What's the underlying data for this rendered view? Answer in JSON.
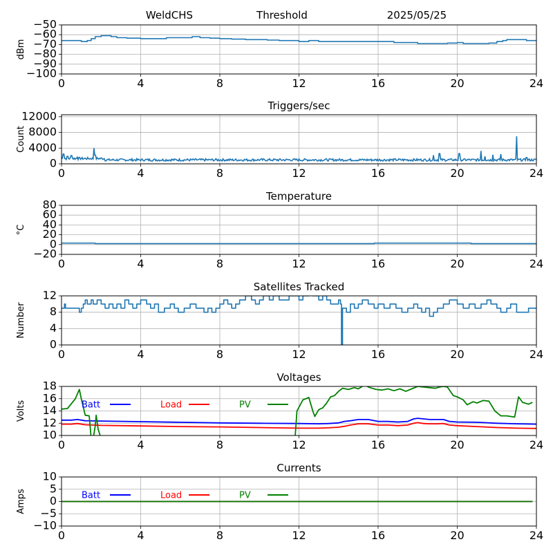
{
  "header": {
    "station": "WeldCHS",
    "mode": "Threshold",
    "date": "2025/05/25"
  },
  "chart_data": [
    {
      "id": "rssi",
      "type": "line",
      "title": "",
      "ylabel": "dBm",
      "xlim": [
        0,
        24
      ],
      "ylim": [
        -100,
        -50
      ],
      "xticks": [
        0,
        4,
        8,
        12,
        16,
        20,
        24
      ],
      "yticks": [
        -100,
        -90,
        -80,
        -70,
        -60,
        -50
      ],
      "step": true,
      "series": [
        {
          "color": "#1f77b4",
          "x": [
            0,
            1.0,
            1.3,
            1.5,
            1.7,
            2.0,
            2.2,
            2.5,
            2.8,
            3.3,
            4.0,
            4.8,
            5.3,
            6.0,
            6.6,
            7.0,
            7.5,
            8.0,
            8.6,
            9.3,
            10.0,
            10.4,
            11.0,
            11.4,
            12.0,
            12.5,
            13.0,
            14.0,
            15.0,
            16.0,
            16.8,
            17.5,
            18.0,
            18.5,
            19.5,
            20.0,
            20.3,
            21.2,
            21.6,
            22.0,
            22.3,
            22.5,
            23.0,
            23.5,
            24.0
          ],
          "y": [
            -66,
            -67,
            -66,
            -64,
            -62,
            -61,
            -61,
            -62,
            -63,
            -63.5,
            -64,
            -64,
            -63,
            -63,
            -62,
            -63,
            -63.5,
            -64,
            -64.5,
            -65,
            -65,
            -65.5,
            -66,
            -66,
            -67,
            -66,
            -67,
            -67,
            -67,
            -67,
            -68,
            -68,
            -69,
            -69,
            -68.5,
            -68,
            -69,
            -69,
            -68.5,
            -67,
            -66,
            -65,
            -65,
            -66,
            -66
          ]
        }
      ]
    },
    {
      "id": "triggers",
      "type": "line",
      "title": "Triggers/sec",
      "ylabel": "Count",
      "xlim": [
        0,
        24
      ],
      "ylim": [
        0,
        12500
      ],
      "xticks": [
        0,
        4,
        8,
        12,
        16,
        20,
        24
      ],
      "yticks": [
        0,
        4000,
        8000,
        12000
      ],
      "baseline": 1000,
      "noise": 300,
      "spikes": [
        [
          0.1,
          2500
        ],
        [
          0.3,
          1900
        ],
        [
          0.5,
          2100
        ],
        [
          0.8,
          1700
        ],
        [
          1.65,
          4000
        ],
        [
          1.7,
          2200
        ],
        [
          18.8,
          2200
        ],
        [
          19.1,
          2600
        ],
        [
          20.1,
          2600
        ],
        [
          21.2,
          3300
        ],
        [
          21.4,
          1900
        ],
        [
          21.8,
          2300
        ],
        [
          22.2,
          2500
        ],
        [
          23.0,
          7000
        ],
        [
          23.5,
          1600
        ]
      ],
      "series": [
        {
          "color": "#1f77b4"
        }
      ]
    },
    {
      "id": "temperature",
      "type": "line",
      "title": "Temperature",
      "ylabel": "°C",
      "xlim": [
        0,
        24
      ],
      "ylim": [
        -20,
        80
      ],
      "xticks": [
        0,
        4,
        8,
        12,
        16,
        20,
        24
      ],
      "yticks": [
        -20,
        0,
        20,
        40,
        60,
        80
      ],
      "step": true,
      "series": [
        {
          "color": "#1f77b4",
          "x": [
            0,
            1.6,
            1.7,
            15.7,
            15.8,
            20.6,
            20.7,
            24
          ],
          "y": [
            3,
            3,
            2,
            2,
            3,
            3,
            2,
            2
          ]
        }
      ]
    },
    {
      "id": "satellites",
      "type": "line",
      "title": "Satellites Tracked",
      "ylabel": "Number",
      "xlim": [
        0,
        24
      ],
      "ylim": [
        0,
        12
      ],
      "xticks": [
        0,
        4,
        8,
        12,
        16,
        20,
        24
      ],
      "yticks": [
        0,
        4,
        8,
        12
      ],
      "step": true,
      "series": [
        {
          "color": "#1f77b4",
          "x": [
            0,
            0.15,
            0.2,
            0.9,
            1.0,
            1.1,
            1.2,
            1.3,
            1.5,
            1.6,
            1.8,
            2.0,
            2.2,
            2.4,
            2.6,
            2.8,
            3.0,
            3.2,
            3.4,
            3.6,
            3.8,
            4.0,
            4.3,
            4.5,
            4.7,
            4.9,
            5.2,
            5.5,
            5.7,
            5.9,
            6.2,
            6.5,
            6.8,
            7.2,
            7.4,
            7.6,
            7.8,
            8.0,
            8.2,
            8.4,
            8.6,
            8.8,
            9.0,
            9.3,
            9.6,
            9.8,
            10.0,
            10.2,
            10.5,
            10.7,
            11.0,
            11.5,
            12.0,
            12.2,
            12.5,
            12.7,
            13.0,
            13.2,
            13.4,
            13.6,
            14.0,
            14.1,
            14.15,
            14.2,
            14.4,
            14.6,
            14.8,
            15.0,
            15.2,
            15.5,
            15.8,
            16.0,
            16.3,
            16.6,
            16.9,
            17.2,
            17.5,
            17.8,
            18.0,
            18.2,
            18.4,
            18.6,
            18.8,
            19.0,
            19.3,
            19.6,
            20.0,
            20.3,
            20.6,
            20.9,
            21.2,
            21.5,
            21.7,
            22.0,
            22.2,
            22.5,
            22.7,
            23.0,
            23.3,
            23.6,
            24.0
          ],
          "y": [
            9,
            10,
            9,
            8,
            9,
            10,
            11,
            10,
            11,
            10,
            11,
            10,
            9,
            10,
            9,
            10,
            9,
            11,
            10,
            9,
            10,
            11,
            10,
            9,
            10,
            8,
            9,
            10,
            9,
            8,
            9,
            10,
            9,
            8,
            9,
            8,
            9,
            10,
            11,
            10,
            9,
            10,
            11,
            12,
            11,
            10,
            11,
            12,
            11,
            12,
            11,
            12,
            11,
            12,
            13,
            12,
            11,
            12,
            11,
            10,
            11,
            10,
            0,
            9,
            8,
            10,
            9,
            10,
            11,
            10,
            9,
            10,
            9,
            10,
            9,
            8,
            9,
            10,
            9,
            8,
            9,
            7,
            8,
            9,
            10,
            11,
            10,
            9,
            10,
            9,
            10,
            11,
            10,
            9,
            8,
            9,
            10,
            8,
            8,
            9,
            9
          ]
        }
      ]
    },
    {
      "id": "voltages",
      "type": "line",
      "title": "Voltages",
      "ylabel": "Volts",
      "xlim": [
        0,
        24
      ],
      "ylim": [
        10,
        18
      ],
      "xticks": [
        0,
        4,
        8,
        12,
        16,
        20,
        24
      ],
      "yticks": [
        10,
        12,
        14,
        16,
        18
      ],
      "legend": [
        {
          "name": "Batt",
          "color": "#0000ff"
        },
        {
          "name": "Load",
          "color": "#ff0000"
        },
        {
          "name": "PV",
          "color": "#008000"
        }
      ],
      "series": [
        {
          "name": "Batt",
          "color": "#0000ff",
          "x": [
            0,
            0.5,
            0.8,
            1.2,
            2,
            4,
            6,
            8,
            10,
            12,
            13,
            13.5,
            14,
            14.3,
            14.6,
            15,
            15.5,
            16,
            16.5,
            17,
            17.5,
            17.8,
            18,
            18.3,
            18.6,
            19,
            19.3,
            19.6,
            20,
            21,
            22,
            23,
            24
          ],
          "y": [
            12.5,
            12.5,
            12.6,
            12.4,
            12.35,
            12.25,
            12.15,
            12.05,
            12.0,
            11.95,
            11.9,
            11.95,
            12.05,
            12.3,
            12.4,
            12.6,
            12.6,
            12.3,
            12.3,
            12.2,
            12.3,
            12.7,
            12.8,
            12.7,
            12.6,
            12.6,
            12.6,
            12.3,
            12.2,
            12.15,
            12.0,
            11.9,
            11.85
          ]
        },
        {
          "name": "Load",
          "color": "#ff0000",
          "x": [
            0,
            0.5,
            0.8,
            1.2,
            2,
            4,
            6,
            8,
            10,
            12,
            13,
            13.5,
            14,
            14.3,
            14.6,
            15,
            15.5,
            16,
            16.5,
            17,
            17.5,
            17.8,
            18,
            18.3,
            18.6,
            19,
            19.3,
            19.6,
            20,
            21,
            22,
            23,
            24
          ],
          "y": [
            11.85,
            11.85,
            11.95,
            11.75,
            11.65,
            11.55,
            11.45,
            11.4,
            11.3,
            11.2,
            11.2,
            11.25,
            11.35,
            11.5,
            11.7,
            11.9,
            11.9,
            11.7,
            11.7,
            11.6,
            11.7,
            12.0,
            12.1,
            11.95,
            11.9,
            11.9,
            11.95,
            11.7,
            11.6,
            11.45,
            11.3,
            11.2,
            11.15
          ]
        },
        {
          "name": "PV",
          "color": "#008000",
          "x": [
            0,
            0.3,
            0.5,
            0.7,
            0.9,
            1.0,
            1.2,
            1.4,
            1.5,
            1.6,
            1.7,
            1.75,
            1.85,
            2.0,
            11.8,
            11.9,
            12.2,
            12.5,
            12.7,
            12.8,
            13.0,
            13.2,
            13.4,
            13.6,
            13.8,
            14.0,
            14.2,
            14.5,
            14.8,
            15.0,
            15.3,
            15.6,
            15.9,
            16.2,
            16.5,
            16.8,
            17.1,
            17.4,
            17.7,
            18.0,
            18.3,
            18.6,
            18.9,
            19.1,
            19.3,
            19.5,
            19.8,
            20.0,
            20.3,
            20.5,
            20.8,
            21.0,
            21.3,
            21.6,
            21.9,
            22.2,
            22.5,
            22.7,
            22.9,
            23.1,
            23.3,
            23.6,
            23.8
          ],
          "y": [
            14.3,
            14.4,
            15.2,
            16.0,
            17.5,
            16.0,
            13.3,
            13.2,
            9.5,
            9.5,
            11.5,
            13.3,
            11.0,
            9.5,
            9.5,
            14.0,
            15.8,
            16.2,
            14.0,
            13.1,
            14.2,
            14.5,
            15.3,
            16.3,
            16.5,
            17.2,
            17.7,
            17.5,
            17.8,
            17.6,
            18.2,
            17.8,
            17.5,
            17.4,
            17.6,
            17.3,
            17.6,
            17.2,
            17.6,
            18.0,
            17.9,
            17.8,
            17.7,
            17.9,
            18.0,
            17.9,
            16.5,
            16.3,
            15.8,
            15.0,
            15.5,
            15.3,
            15.7,
            15.6,
            14.0,
            13.2,
            13.2,
            13.1,
            13.0,
            16.3,
            15.4,
            15.1,
            15.4
          ]
        }
      ]
    },
    {
      "id": "currents",
      "type": "line",
      "title": "Currents",
      "ylabel": "Amps",
      "xlim": [
        0,
        24
      ],
      "ylim": [
        -10,
        10
      ],
      "xticks": [
        0,
        4,
        8,
        12,
        16,
        20,
        24
      ],
      "yticks": [
        -10,
        -5,
        0,
        5,
        10
      ],
      "legend": [
        {
          "name": "Batt",
          "color": "#0000ff"
        },
        {
          "name": "Load",
          "color": "#ff0000"
        },
        {
          "name": "PV",
          "color": "#008000"
        }
      ],
      "series": [
        {
          "name": "Batt",
          "color": "#0000ff",
          "x": [
            0,
            23.8
          ],
          "y": [
            0,
            0
          ]
        },
        {
          "name": "Load",
          "color": "#ff0000",
          "x": [
            0,
            23.8
          ],
          "y": [
            0,
            0
          ]
        },
        {
          "name": "PV",
          "color": "#008000",
          "x": [
            0,
            23.8
          ],
          "y": [
            0,
            0
          ]
        }
      ]
    }
  ]
}
